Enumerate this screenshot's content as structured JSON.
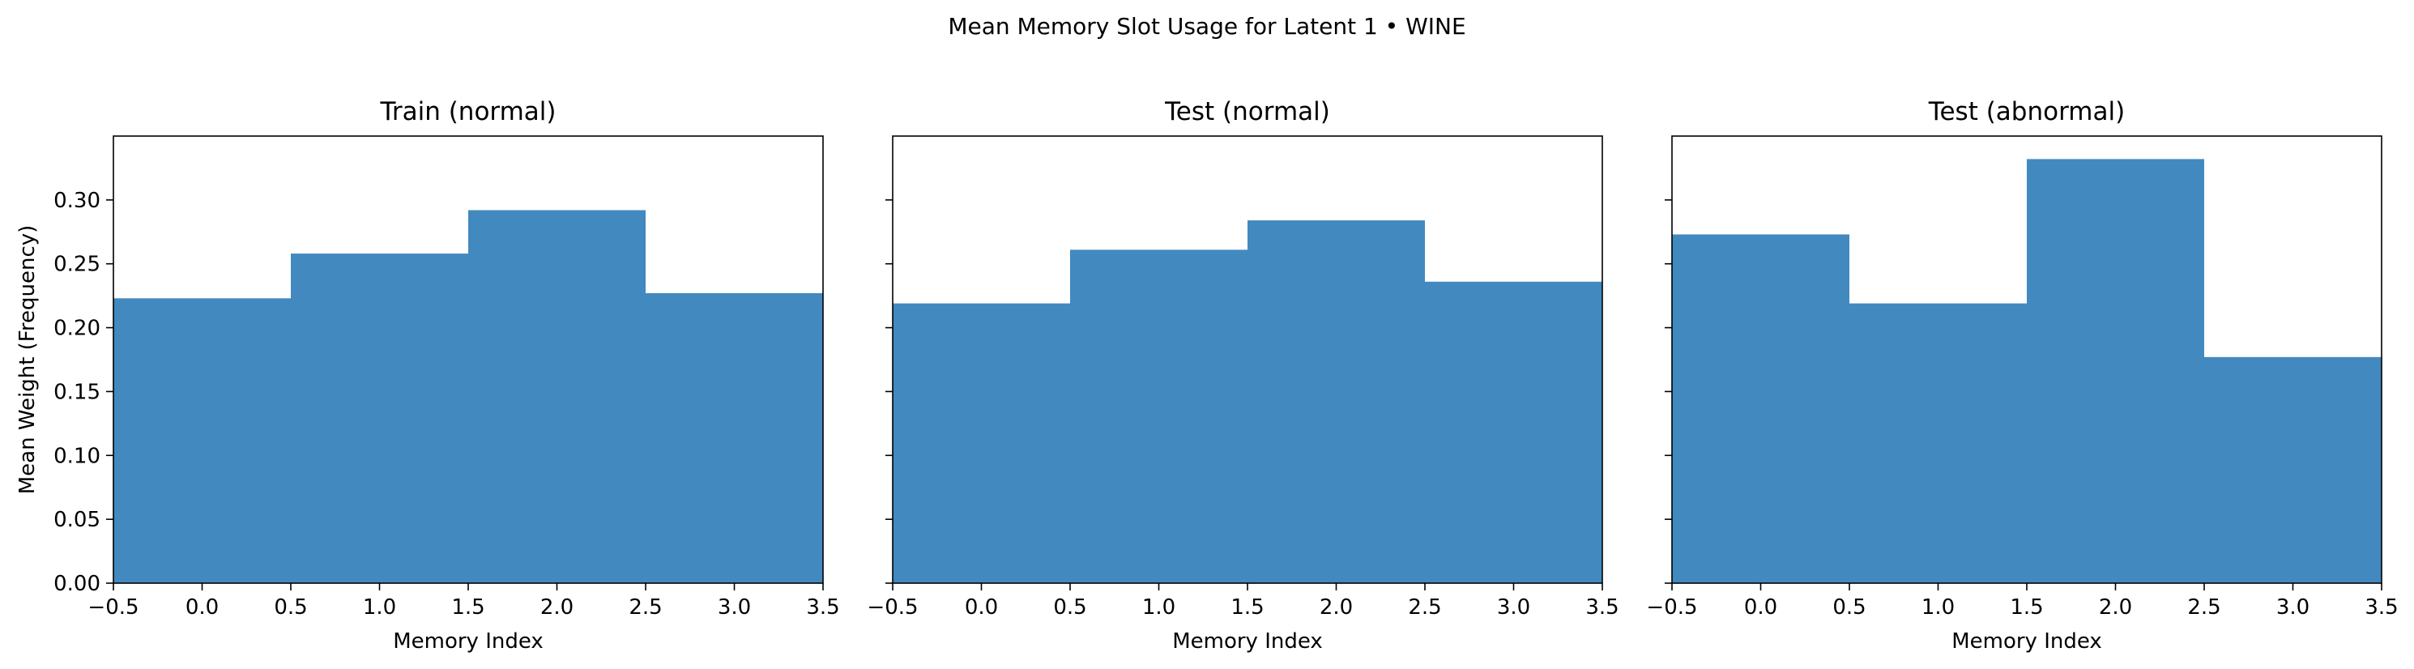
{
  "figure": {
    "suptitle": "Mean Memory Slot Usage for Latent 1 • WINE"
  },
  "colors": {
    "bar": "#4289BF",
    "axis": "#000000",
    "background": "#FFFFFF"
  },
  "chart_data": [
    {
      "type": "bar",
      "title": "Train (normal)",
      "xlabel": "Memory Index",
      "ylabel": "Mean Weight (Frequency)",
      "categories": [
        0,
        1,
        2,
        3
      ],
      "values": [
        0.223,
        0.258,
        0.292,
        0.227
      ],
      "xlim": [
        -0.5,
        3.5
      ],
      "ylim": [
        0,
        0.35
      ],
      "xticks": [
        "−0.5",
        "0.0",
        "0.5",
        "1.0",
        "1.5",
        "2.0",
        "2.5",
        "3.0",
        "3.5"
      ],
      "xtick_values": [
        -0.5,
        0.0,
        0.5,
        1.0,
        1.5,
        2.0,
        2.5,
        3.0,
        3.5
      ],
      "yticks": [
        "0.00",
        "0.05",
        "0.10",
        "0.15",
        "0.20",
        "0.25",
        "0.30"
      ],
      "ytick_values": [
        0.0,
        0.05,
        0.1,
        0.15,
        0.2,
        0.25,
        0.3
      ],
      "grid": false
    },
    {
      "type": "bar",
      "title": "Test (normal)",
      "xlabel": "Memory Index",
      "ylabel": "",
      "categories": [
        0,
        1,
        2,
        3
      ],
      "values": [
        0.219,
        0.261,
        0.284,
        0.236
      ],
      "xlim": [
        -0.5,
        3.5
      ],
      "ylim": [
        0,
        0.35
      ],
      "xticks": [
        "−0.5",
        "0.0",
        "0.5",
        "1.0",
        "1.5",
        "2.0",
        "2.5",
        "3.0",
        "3.5"
      ],
      "xtick_values": [
        -0.5,
        0.0,
        0.5,
        1.0,
        1.5,
        2.0,
        2.5,
        3.0,
        3.5
      ],
      "yticks": [],
      "ytick_values": [
        0.0,
        0.05,
        0.1,
        0.15,
        0.2,
        0.25,
        0.3
      ],
      "grid": false
    },
    {
      "type": "bar",
      "title": "Test (abnormal)",
      "xlabel": "Memory Index",
      "ylabel": "",
      "categories": [
        0,
        1,
        2,
        3
      ],
      "values": [
        0.273,
        0.219,
        0.332,
        0.177
      ],
      "xlim": [
        -0.5,
        3.5
      ],
      "ylim": [
        0,
        0.35
      ],
      "xticks": [
        "−0.5",
        "0.0",
        "0.5",
        "1.0",
        "1.5",
        "2.0",
        "2.5",
        "3.0",
        "3.5"
      ],
      "xtick_values": [
        -0.5,
        0.0,
        0.5,
        1.0,
        1.5,
        2.0,
        2.5,
        3.0,
        3.5
      ],
      "yticks": [],
      "ytick_values": [
        0.0,
        0.05,
        0.1,
        0.15,
        0.2,
        0.25,
        0.3
      ],
      "grid": false
    }
  ]
}
